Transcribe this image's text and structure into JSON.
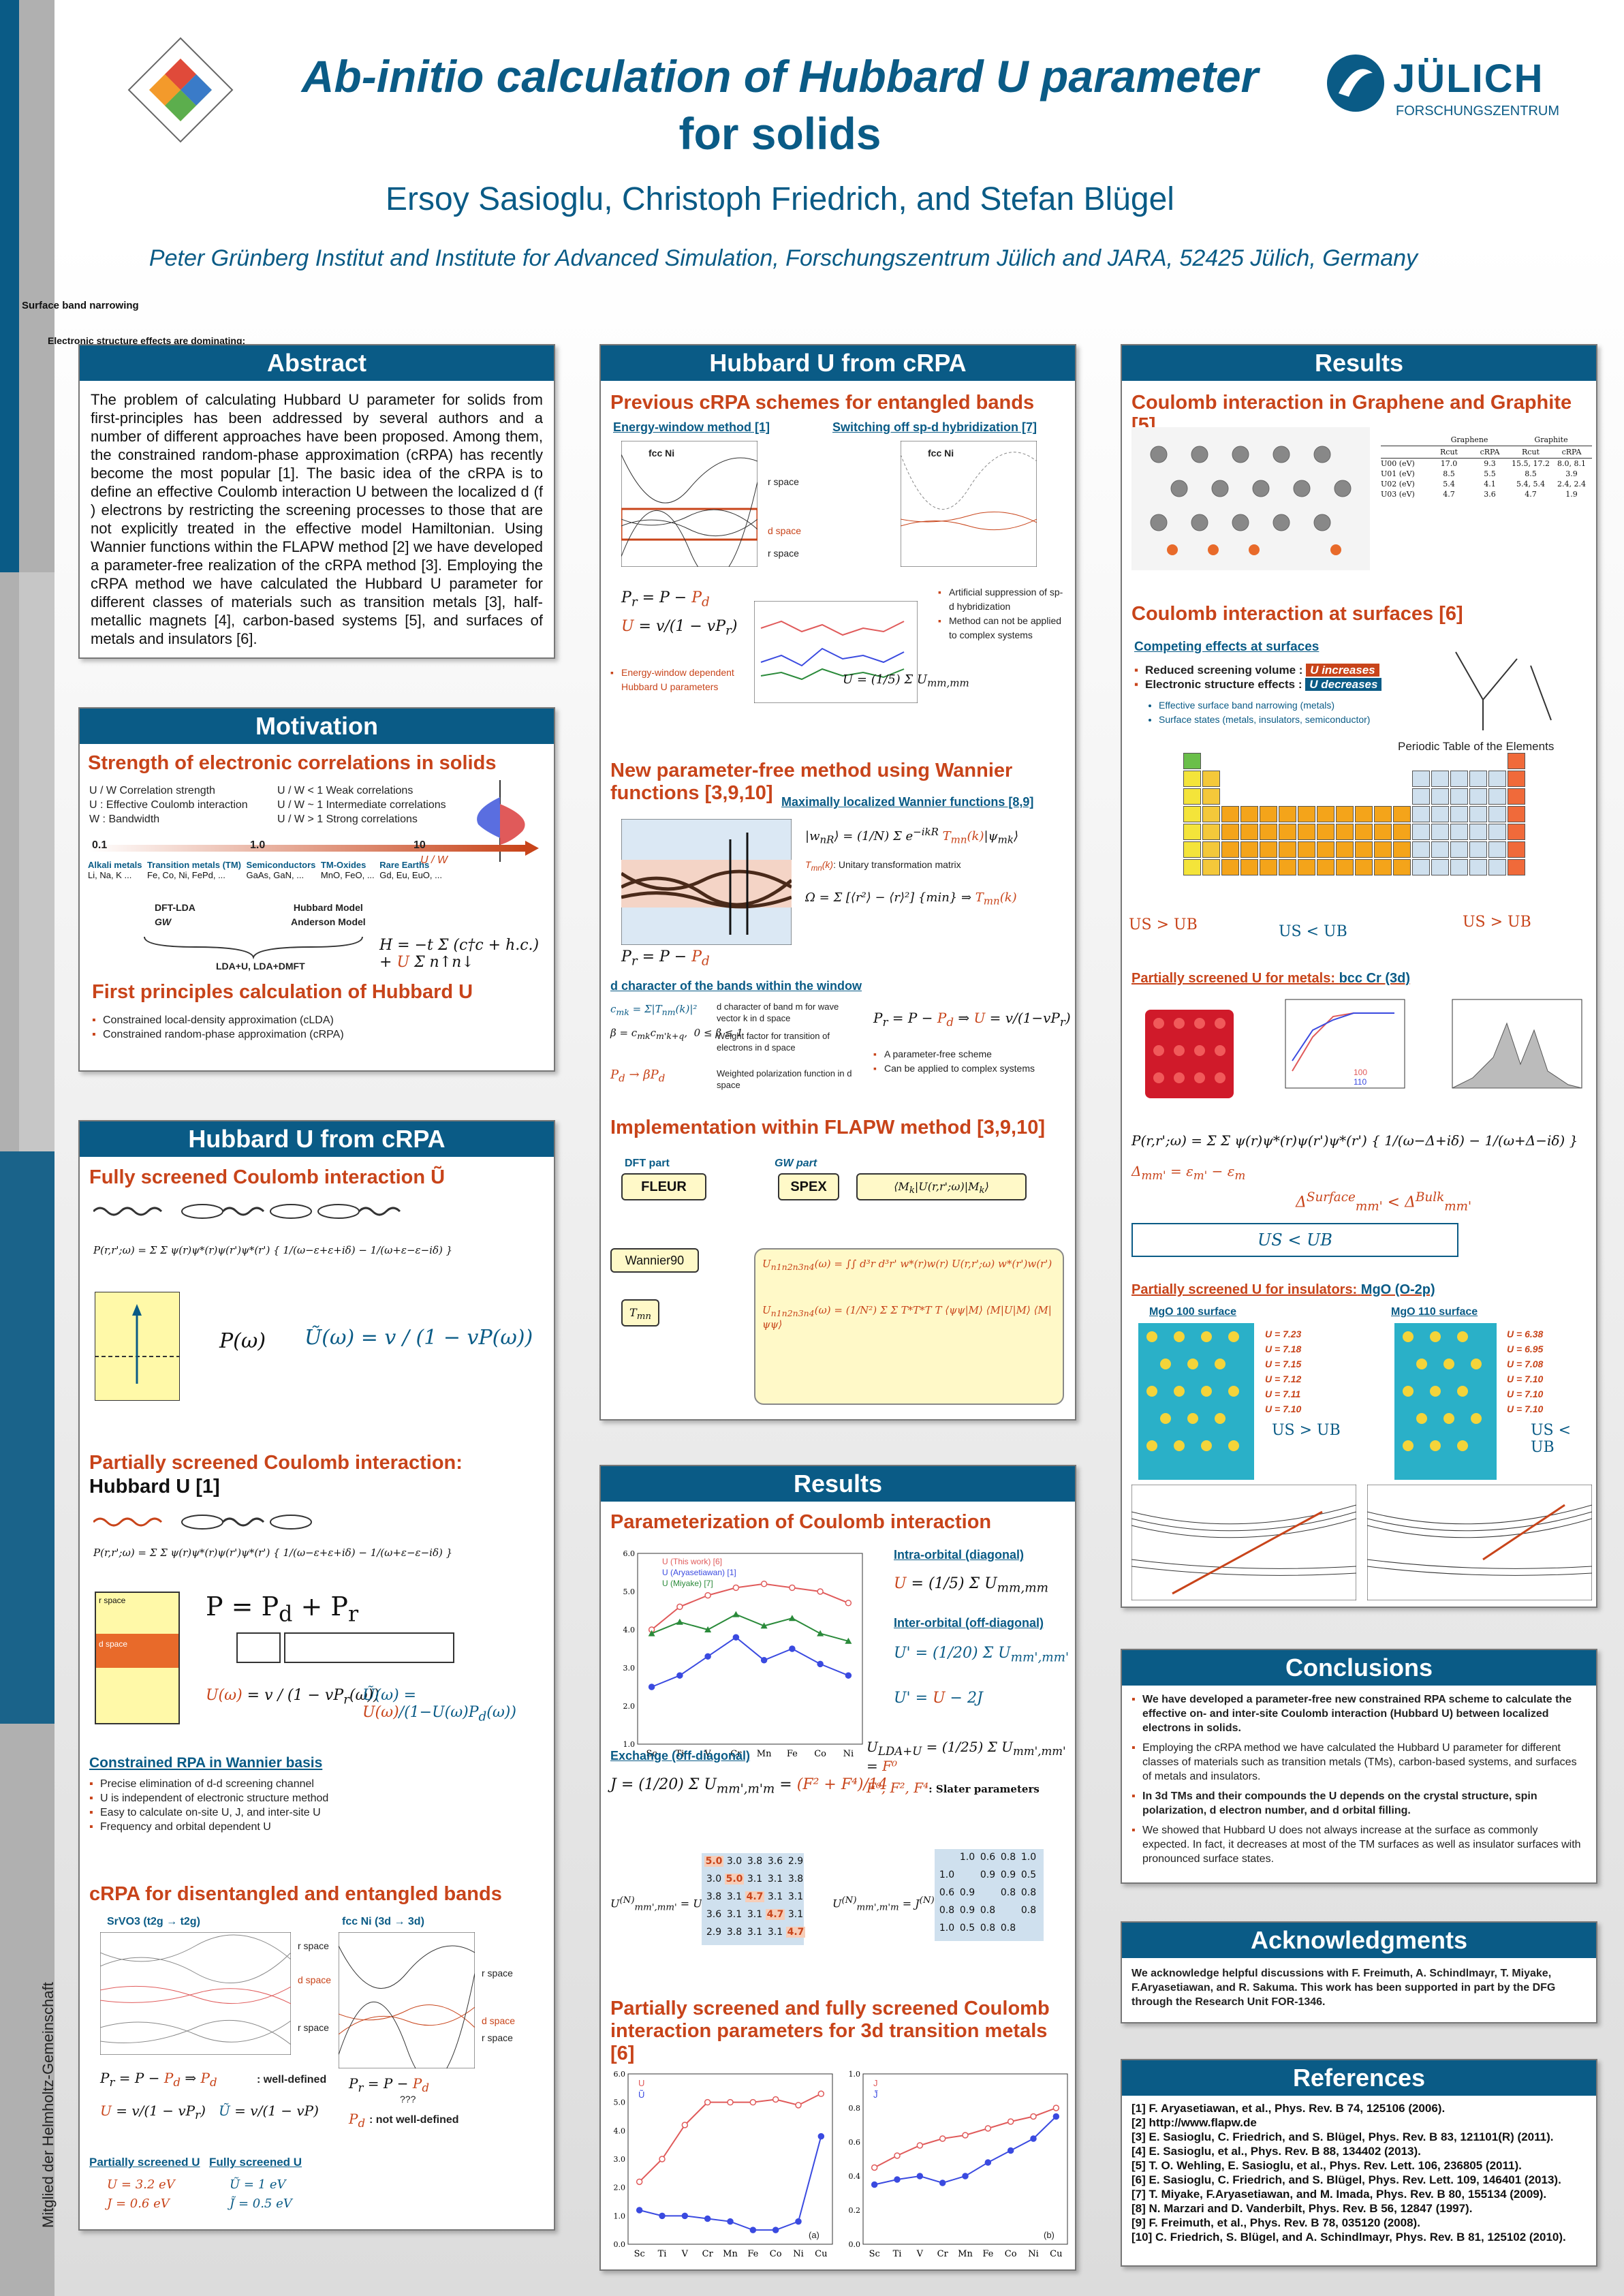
{
  "header": {
    "title_line1": "Ab-initio calculation of Hubbard U parameter",
    "title_line2": "for solids",
    "authors": "Ersoy Sasioglu, Christoph Friedrich, and Stefan Blügel",
    "affiliation": "Peter Grünberg Institut and Institute for Advanced Simulation, Forschungszentrum Jülich and JARA, 52425 Jülich, Germany",
    "logo_text": "JÜLICH",
    "logo_sub": "FORSCHUNGSZENTRUM",
    "vertical_text": "Mitglied der Helmholtz-Gemeinschaft",
    "stray1": "Surface band narrowing",
    "stray2": "Electronic structure effects are dominating:"
  },
  "abstract": {
    "title": "Abstract",
    "text": "The problem of calculating Hubbard U parameter for solids from first-principles has been addressed by several authors and a number of different approaches have been proposed. Among them, the constrained random-phase approximation (cRPA) has recently become the most popular [1]. The basic idea of the cRPA is to define an effective Coulomb interaction U between the localized d (f ) electrons by restricting the screening processes to those that are not explicitly treated in the effective model Hamiltonian. Using Wannier functions within the FLAPW method [2] we have developed a parameter-free realization of the cRPA method [3]. Employing the cRPA method we have calculated the Hubbard U parameter for different classes of materials such as transition metals [3], half-metallic magnets [4], carbon-based systems [5], and surfaces of metals and insulators [6]."
  },
  "motivation": {
    "title": "Motivation",
    "h1": "Strength of electronic correlations in solids",
    "corr_legend": [
      "U / W  Correlation strength",
      "U : Effective Coulomb interaction",
      "W : Bandwidth"
    ],
    "corr_cases": [
      "U / W < 1  Weak correlations",
      "U / W ~ 1  Intermediate correlations",
      "U / W > 1  Strong correlations"
    ],
    "scale_ticks": [
      "0.1",
      "1.0",
      "10"
    ],
    "scale_label": "U / W",
    "classes": [
      {
        "name": "Alkali metals",
        "ex": "Li, Na, K ..."
      },
      {
        "name": "Transition metals (TM)",
        "ex": "Fe, Co, Ni, FePd, ..."
      },
      {
        "name": "Semiconductors",
        "ex": "GaAs, GaN, ..."
      },
      {
        "name": "TM-Oxides",
        "ex": "MnO, FeO, ..."
      },
      {
        "name": "Rare Earths",
        "ex": "Gd, Eu, EuO, ..."
      }
    ],
    "methods": [
      "DFT-LDA",
      "GW",
      "Hubbard Model",
      "Anderson Model",
      "LDA+U, LDA+DMFT"
    ],
    "h2": "First principles calculation of Hubbard U",
    "bullets": [
      "Constrained local-density approximation (cLDA)",
      "Constrained random-phase approximation (cRPA)"
    ]
  },
  "hub_left": {
    "title": "Hubbard U from cRPA",
    "h1": "Fully screened Coulomb interaction Ũ",
    "h2a": "Partially screened Coulomb interaction:",
    "h2b": "Hubbard U [1]",
    "space_labels": [
      "r space",
      "d space"
    ],
    "h3": "Constrained RPA in Wannier basis",
    "bullets": [
      "Precise elimination of d-d screening channel",
      "U is independent of electronic structure method",
      "Easy to calculate on-site U, J, and inter-site U",
      "Frequency and orbital dependent U"
    ],
    "h4": "cRPA for disentangled and entangled bands",
    "sub1": "SrVO3 (t2g → t2g)",
    "sub2": "fcc Ni (3d → 3d)",
    "well": ": well-defined",
    "notwell": ": not well-defined",
    "q": "???",
    "lnk1": "Partially screened U",
    "lnk2": "Fully screened U",
    "vals": [
      "U = 3.2 eV",
      "J = 0.6 eV",
      "Ũ = 1 eV",
      "J̃ = 0.5 eV"
    ]
  },
  "hub_mid": {
    "title": "Hubbard U from cRPA",
    "h1": "Previous cRPA schemes for entangled bands",
    "lnk1": "Energy-window method [1]",
    "lnk2": "Switching off sp-d hybridization [7]",
    "fig_label": "fcc Ni",
    "space_labels": [
      "r space",
      "d space",
      "r space"
    ],
    "note1": "Energy-window dependent Hubbard U parameters",
    "note2": [
      "Artificial suppression of sp-d hybridization",
      "Method can not be applied to complex systems"
    ],
    "h2": "New parameter-free method using Wannier functions [3,9,10]",
    "lnk3": "Maximally localized Wannier functions [8,9]",
    "unitary": ": Unitary transformation matrix",
    "h3": "d character of the bands within the window",
    "dchar_notes": [
      "d character of band m for wave vector k in d space",
      "Weight factor for transition of electrons in d space",
      "Weighted polarization function in d space"
    ],
    "bullets": [
      "A parameter-free scheme",
      "Can be applied to complex systems"
    ],
    "h4": "Implementation within FLAPW method [3,9,10]",
    "dft": "DFT part",
    "gw": "GW part",
    "fleur": "FLEUR",
    "spex": "SPEX",
    "wan": "Wannier90"
  },
  "res_mid": {
    "title": "Results",
    "h1": "Parameterization of Coulomb interaction",
    "legend": [
      "U (This work) [6]",
      "U (Aryasetiawan) [1]",
      "U (Miyake) [7]"
    ],
    "intra": "Intra-orbital (diagonal)",
    "inter": "Inter-orbital (off-diagonal)",
    "exch": "Exchange (off-diagonal)",
    "slater": ": Slater parameters",
    "matU": [
      [
        "5.0",
        "3.0",
        "3.8",
        "3.6",
        "2.9"
      ],
      [
        "3.0",
        "5.0",
        "3.1",
        "3.1",
        "3.8"
      ],
      [
        "3.8",
        "3.1",
        "4.7",
        "3.1",
        "3.1"
      ],
      [
        "3.6",
        "3.1",
        "3.1",
        "4.7",
        "3.1"
      ],
      [
        "2.9",
        "3.8",
        "3.1",
        "3.1",
        "4.7"
      ]
    ],
    "matJ": [
      [
        "",
        "1.0",
        "0.6",
        "0.8",
        "1.0"
      ],
      [
        "1.0",
        "",
        "0.9",
        "0.9",
        "0.5"
      ],
      [
        "0.6",
        "0.9",
        "",
        "0.8",
        "0.8"
      ],
      [
        "0.8",
        "0.9",
        "0.8",
        "",
        "0.8"
      ],
      [
        "1.0",
        "0.5",
        "0.8",
        "0.8",
        ""
      ]
    ],
    "h2": "Partially screened and fully screened Coulomb interaction parameters for 3d transition metals [6]",
    "xlabels": [
      "Sc",
      "Ti",
      "V",
      "Cr",
      "Mn",
      "Fe",
      "Co",
      "Ni",
      "Cu"
    ],
    "tag_a": "(a)",
    "tag_b": "(b)"
  },
  "results": {
    "title": "Results",
    "h1": "Coulomb interaction in Graphene and Graphite [5]",
    "table_head": [
      "",
      "Graphene",
      "",
      "Graphite",
      ""
    ],
    "table_sub": [
      "",
      "Rcut",
      "cRPA",
      "Rcut",
      "cRPA"
    ],
    "table_rows": [
      [
        "U00 (eV)",
        "17.0",
        "9.3",
        "15.5, 17.2",
        "8.0, 8.1"
      ],
      [
        "U01 (eV)",
        "8.5",
        "5.5",
        "8.5",
        "3.9"
      ],
      [
        "U02 (eV)",
        "5.4",
        "4.1",
        "5.4, 5.4",
        "2.4, 2.4"
      ],
      [
        "U03 (eV)",
        "4.7",
        "3.6",
        "4.7",
        "1.9"
      ]
    ],
    "h2": "Coulomb interaction at surfaces [6]",
    "lnk1": "Competing effects at surfaces",
    "b1": "Reduced screening volume :",
    "b1tag": "U increases",
    "b2": "Electronic structure effects :",
    "b2tag": "U decreases",
    "sub_b": [
      "Effective surface band narrowing (metals)",
      "Surface states (metals, insulators, semiconductor)"
    ],
    "ptable_title": "Periodic Table of the Elements",
    "uslab": [
      "US > UB",
      "US < UB",
      "US > UB"
    ],
    "h3a": "Partially screened U for metals:",
    "h3b": "bcc Cr (3d)",
    "leg100": [
      "100",
      "110"
    ],
    "h4a": "Partially screened U for insulators:",
    "h4b": "MgO (O-2p)",
    "mgo100": "MgO 100 surface",
    "mgo110": "MgO 110 surface",
    "u100": [
      "U = 7.23",
      "U = 7.18",
      "U = 7.15",
      "U = 7.12",
      "U = 7.11",
      "U = 7.10"
    ],
    "u110": [
      "U = 6.38",
      "U = 6.95",
      "U = 7.08",
      "U = 7.10",
      "U = 7.10",
      "U = 7.10"
    ],
    "surf": "Surface",
    "bulk": "Bulk"
  },
  "conclusions": {
    "title": "Conclusions",
    "items": [
      "We have developed a parameter-free new constrained RPA scheme to calculate the effective on- and inter-site Coulomb interaction (Hubbard U) between localized electrons in solids.",
      "Employing the cRPA method we have calculated the Hubbard U parameter for different classes of materials such as transition metals (TMs), carbon-based systems, and surfaces of metals and insulators.",
      "In 3d TMs and their compounds the U depends on the crystal structure, spin polarization, d electron number, and d orbital filling.",
      "We showed that Hubbard U does not always increase at the surface as commonly expected. In fact, it decreases at most of the TM surfaces as well as insulator surfaces with pronounced surface states."
    ]
  },
  "ack": {
    "title": "Acknowledgments",
    "text": "We acknowledge helpful discussions with F. Freimuth, A. Schindlmayr, T. Miyake, F.Aryasetiawan, and R. Sakuma. This work has been supported in part by the DFG through the Research Unit FOR-1346."
  },
  "refs": {
    "title": "References",
    "items": [
      "[1] F. Aryasetiawan, et al., Phys. Rev. B 74, 125106 (2006).",
      "[2] http://www.flapw.de",
      "[3] E. Sasioglu, C. Friedrich, and S. Blügel, Phys. Rev. B 83, 121101(R) (2011).",
      "[4] E. Sasioglu, et al., Phys. Rev. B 88, 134402 (2013).",
      "[5] T. O. Wehling, E. Sasioglu, et al., Phys. Rev. Lett. 106, 236805 (2011).",
      "[6] E. Sasioglu, C. Friedrich, and S. Blügel, Phys. Rev. Lett. 109, 146401 (2013).",
      "[7] T. Miyake, F.Aryasetiawan, and M. Imada, Phys. Rev. B 80, 155134 (2009).",
      "[8] N. Marzari and D. Vanderbilt, Phys. Rev. B 56, 12847 (1997).",
      "[9] F. Freimuth, et al., Phys. Rev. B 78, 035120 (2008).",
      "[10] C. Friedrich, S. Blügel, and A. Schindlmayr, Phys. Rev. B 81, 125102 (2010)."
    ]
  },
  "chart_data": [
    {
      "type": "line",
      "x": [
        "Sc",
        "Ti",
        "V",
        "Cr",
        "Mn",
        "Fe",
        "Co",
        "Ni"
      ],
      "series": [
        {
          "name": "U (This work) [6]",
          "values": [
            4.0,
            4.6,
            4.9,
            5.1,
            5.2,
            5.1,
            5.0,
            4.7
          ]
        },
        {
          "name": "U (Aryasetiawan) [1]",
          "values": [
            2.5,
            2.8,
            3.3,
            3.8,
            3.2,
            3.5,
            3.1,
            2.8
          ]
        },
        {
          "name": "U (Miyake) [7]",
          "values": [
            3.9,
            4.2,
            4.0,
            4.4,
            4.1,
            4.3,
            3.9,
            3.7
          ]
        }
      ],
      "ylabel": "U (eV)",
      "ylim": [
        1.0,
        6.0
      ]
    },
    {
      "type": "line",
      "x": [
        "Sc",
        "Ti",
        "V",
        "Cr",
        "Mn",
        "Fe",
        "Co",
        "Ni",
        "Cu"
      ],
      "series": [
        {
          "name": "U",
          "values": [
            2.2,
            3.0,
            4.2,
            5.0,
            5.0,
            5.0,
            5.1,
            4.9,
            5.3
          ]
        },
        {
          "name": "Ũ",
          "values": [
            1.2,
            1.0,
            1.0,
            0.9,
            0.8,
            0.5,
            0.5,
            0.8,
            3.8
          ]
        }
      ],
      "ylim": [
        0,
        6
      ],
      "tag": "(a)"
    },
    {
      "type": "line",
      "x": [
        "Sc",
        "Ti",
        "V",
        "Cr",
        "Mn",
        "Fe",
        "Co",
        "Ni",
        "Cu"
      ],
      "series": [
        {
          "name": "J",
          "values": [
            0.45,
            0.52,
            0.58,
            0.62,
            0.64,
            0.68,
            0.72,
            0.75,
            0.8
          ]
        },
        {
          "name": "J̃",
          "values": [
            0.35,
            0.38,
            0.4,
            0.36,
            0.4,
            0.48,
            0.55,
            0.62,
            0.75
          ]
        }
      ],
      "ylim": [
        0,
        1.0
      ],
      "tag": "(b)"
    }
  ]
}
